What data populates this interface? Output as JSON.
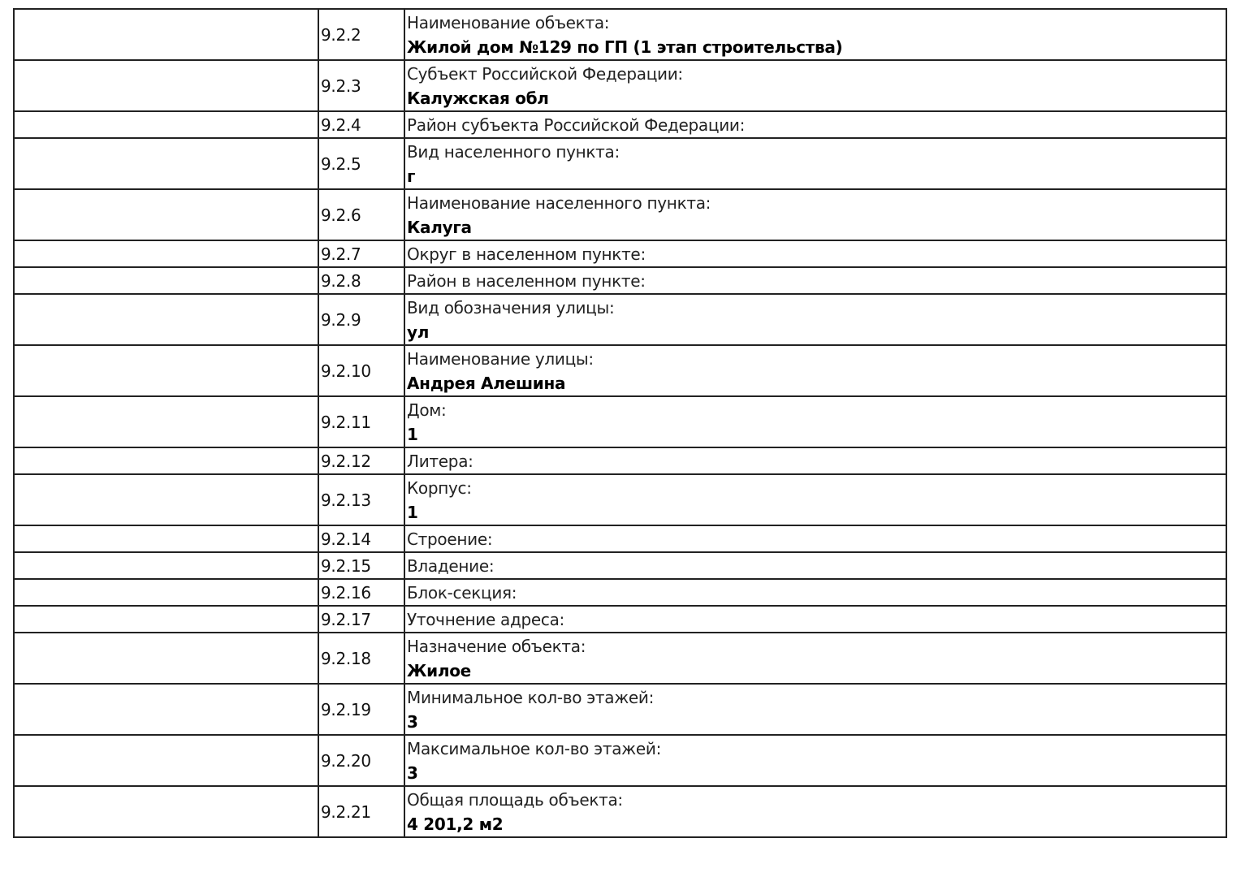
{
  "rows": [
    {
      "num": "9.2.2",
      "label": "Наименование объекта:",
      "value": "Жилой дом №129 по ГП (1 этап строительства)"
    },
    {
      "num": "9.2.3",
      "label": "Субъект Российской Федерации:",
      "value": "Калужская обл"
    },
    {
      "num": "9.2.4",
      "label": "Район субъекта Российской Федерации:",
      "value": ""
    },
    {
      "num": "9.2.5",
      "label": "Вид населенного пункта:",
      "value": "г"
    },
    {
      "num": "9.2.6",
      "label": "Наименование населенного пункта:",
      "value": "Калуга"
    },
    {
      "num": "9.2.7",
      "label": "Округ в населенном пункте:",
      "value": ""
    },
    {
      "num": "9.2.8",
      "label": "Район в населенном пункте:",
      "value": ""
    },
    {
      "num": "9.2.9",
      "label": "Вид обозначения улицы:",
      "value": "ул"
    },
    {
      "num": "9.2.10",
      "label": "Наименование улицы:",
      "value": "Андрея Алешина"
    },
    {
      "num": "9.2.11",
      "label": "Дом:",
      "value": "1"
    },
    {
      "num": "9.2.12",
      "label": "Литера:",
      "value": ""
    },
    {
      "num": "9.2.13",
      "label": "Корпус:",
      "value": "1"
    },
    {
      "num": "9.2.14",
      "label": "Строение:",
      "value": ""
    },
    {
      "num": "9.2.15",
      "label": "Владение:",
      "value": ""
    },
    {
      "num": "9.2.16",
      "label": "Блок-секция:",
      "value": ""
    },
    {
      "num": "9.2.17",
      "label": "Уточнение адреса:",
      "value": ""
    },
    {
      "num": "9.2.18",
      "label": "Назначение объекта:",
      "value": "Жилое"
    },
    {
      "num": "9.2.19",
      "label": "Минимальное кол-во этажей:",
      "value": "3"
    },
    {
      "num": "9.2.20",
      "label": "Максимальное кол-во этажей:",
      "value": "3"
    },
    {
      "num": "9.2.21",
      "label": "Общая площадь объекта:",
      "value": "4 201,2 м2"
    }
  ]
}
